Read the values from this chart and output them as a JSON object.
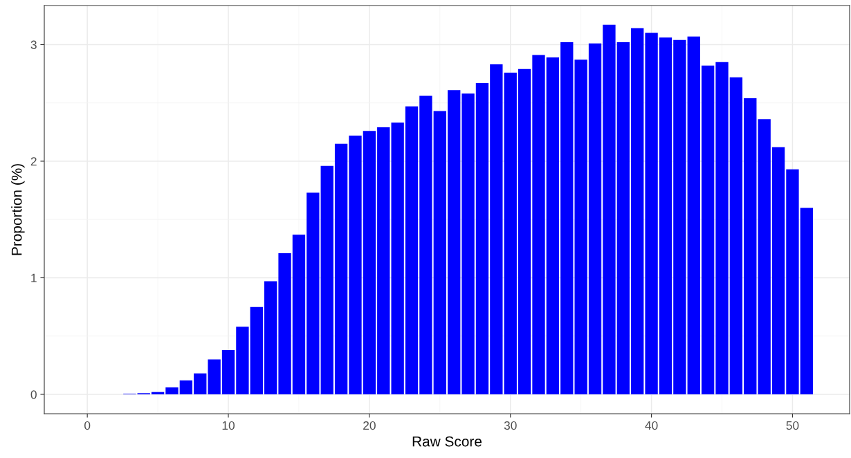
{
  "chart_data": {
    "type": "bar",
    "xlabel": "Raw Score",
    "ylabel": "Proportion (%)",
    "color": "#0000ff",
    "grid": true,
    "x": [
      3,
      4,
      5,
      6,
      7,
      8,
      9,
      10,
      11,
      12,
      13,
      14,
      15,
      16,
      17,
      18,
      19,
      20,
      21,
      22,
      23,
      24,
      25,
      26,
      27,
      28,
      29,
      30,
      31,
      32,
      33,
      34,
      35,
      36,
      37,
      38,
      39,
      40,
      41,
      42,
      43,
      44,
      45,
      46,
      47,
      48,
      49,
      50,
      51
    ],
    "values": [
      0.005,
      0.01,
      0.02,
      0.06,
      0.12,
      0.18,
      0.3,
      0.38,
      0.58,
      0.75,
      0.97,
      1.21,
      1.37,
      1.73,
      1.96,
      2.15,
      2.22,
      2.26,
      2.29,
      2.33,
      2.47,
      2.56,
      2.43,
      2.61,
      2.58,
      2.67,
      2.83,
      2.76,
      2.79,
      2.91,
      2.89,
      3.02,
      2.87,
      3.01,
      3.17,
      3.02,
      3.14,
      3.1,
      3.06,
      3.04,
      3.07,
      2.82,
      2.85,
      2.72,
      2.54,
      2.36,
      2.12,
      1.93,
      1.6
    ],
    "xlim": [
      -3.05,
      54.05
    ],
    "xticks": [
      0,
      10,
      20,
      30,
      40,
      50
    ],
    "ylim": [
      -0.166,
      3.335
    ],
    "yticks": [
      0,
      1,
      2,
      3
    ]
  }
}
